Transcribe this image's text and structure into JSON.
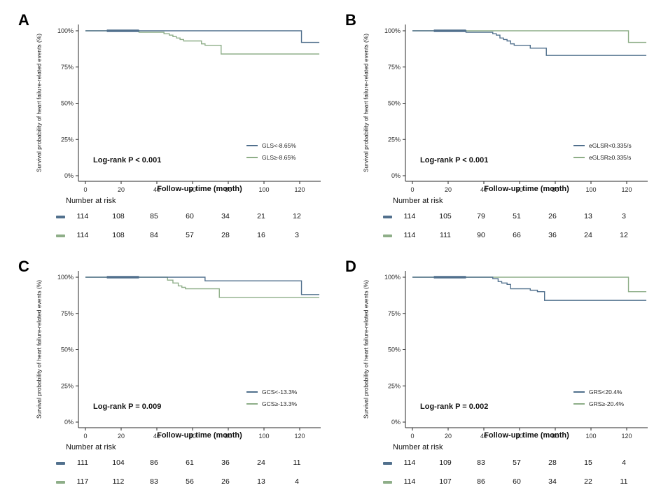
{
  "figure": {
    "y_axis_label": "Survival probability of heart failure-related events (%)",
    "x_axis_label": "Follow-up time (month)",
    "risk_table_label": "Number at risk"
  },
  "colors": {
    "group_low": "#51708d",
    "group_high": "#8eae88",
    "axis": "#2a2a2a",
    "text": "#111111"
  },
  "chart_data": [
    {
      "type": "line",
      "panel": "A",
      "log_rank": "Log-rank P < 0.001",
      "xlabel": "Follow-up time (month)",
      "ylabel": "Survival probability of heart failure-related events (%)",
      "xlim": [
        0,
        131
      ],
      "ylim": [
        0,
        100
      ],
      "x_ticks": [
        0,
        20,
        40,
        60,
        80,
        100,
        120
      ],
      "y_ticks": [
        100,
        75,
        50,
        25,
        0
      ],
      "y_tick_labels": [
        "100%",
        "75%",
        "50%",
        "25%",
        "0%"
      ],
      "grid": false,
      "legend_position": "lower right",
      "censor_band": [
        12,
        30
      ],
      "series": [
        {
          "name": "GLS<-8.65%",
          "color": "#51708d",
          "steps": [
            [
              0,
              100
            ],
            [
              121,
              92
            ]
          ],
          "at_risk": [
            114,
            108,
            85,
            60,
            34,
            21,
            12
          ]
        },
        {
          "name": "GLS≥-8.65%",
          "color": "#8eae88",
          "steps": [
            [
              0,
              100
            ],
            [
              30,
              99
            ],
            [
              44,
              98
            ],
            [
              47,
              97
            ],
            [
              49,
              96
            ],
            [
              51,
              95
            ],
            [
              53,
              94
            ],
            [
              55,
              93
            ],
            [
              65,
              91
            ],
            [
              67,
              90
            ],
            [
              76,
              84
            ]
          ],
          "at_risk": [
            114,
            108,
            84,
            57,
            28,
            16,
            3
          ]
        }
      ]
    },
    {
      "type": "line",
      "panel": "B",
      "log_rank": "Log-rank P < 0.001",
      "xlabel": "Follow-up time (month)",
      "ylabel": "Survival probability of heart failure-related events (%)",
      "xlim": [
        0,
        131
      ],
      "ylim": [
        0,
        100
      ],
      "x_ticks": [
        0,
        20,
        40,
        60,
        80,
        100,
        120
      ],
      "y_ticks": [
        100,
        75,
        50,
        25,
        0
      ],
      "y_tick_labels": [
        "100%",
        "75%",
        "50%",
        "25%",
        "0%"
      ],
      "grid": false,
      "legend_position": "lower right",
      "censor_band": [
        12,
        30
      ],
      "series": [
        {
          "name": "eGLSR<0.335/s",
          "color": "#51708d",
          "steps": [
            [
              0,
              100
            ],
            [
              30,
              99
            ],
            [
              45,
              98
            ],
            [
              47,
              97
            ],
            [
              49,
              95
            ],
            [
              51,
              94
            ],
            [
              53,
              93
            ],
            [
              55,
              91
            ],
            [
              57,
              90
            ],
            [
              66,
              88
            ],
            [
              75,
              83
            ]
          ],
          "at_risk": [
            114,
            105,
            79,
            51,
            26,
            13,
            3
          ]
        },
        {
          "name": "eGLSR≥0.335/s",
          "color": "#8eae88",
          "steps": [
            [
              0,
              100
            ],
            [
              121,
              92
            ]
          ],
          "at_risk": [
            114,
            111,
            90,
            66,
            36,
            24,
            12
          ]
        }
      ]
    },
    {
      "type": "line",
      "panel": "C",
      "log_rank": "Log-rank P = 0.009",
      "xlabel": "Follow-up time (month)",
      "ylabel": "Survival probability of heart failure-related events (%)",
      "xlim": [
        0,
        131
      ],
      "ylim": [
        0,
        100
      ],
      "x_ticks": [
        0,
        20,
        40,
        60,
        80,
        100,
        120
      ],
      "y_ticks": [
        100,
        75,
        50,
        25,
        0
      ],
      "y_tick_labels": [
        "100%",
        "75%",
        "50%",
        "25%",
        "0%"
      ],
      "grid": false,
      "legend_position": "lower right",
      "censor_band": [
        12,
        30
      ],
      "series": [
        {
          "name": "GCS<-13.3%",
          "color": "#51708d",
          "steps": [
            [
              0,
              100
            ],
            [
              67,
              97.5
            ],
            [
              121,
              88
            ]
          ],
          "at_risk": [
            111,
            104,
            86,
            61,
            36,
            24,
            11
          ]
        },
        {
          "name": "GCS≥-13.3%",
          "color": "#8eae88",
          "steps": [
            [
              0,
              100
            ],
            [
              46,
              98
            ],
            [
              49,
              96
            ],
            [
              52,
              94
            ],
            [
              54,
              93
            ],
            [
              56,
              92
            ],
            [
              75,
              86
            ]
          ],
          "at_risk": [
            117,
            112,
            83,
            56,
            26,
            13,
            4
          ]
        }
      ]
    },
    {
      "type": "line",
      "panel": "D",
      "log_rank": "Log-rank P = 0.002",
      "xlabel": "Follow-up time (month)",
      "ylabel": "Survival probability of heart failure-related events (%)",
      "xlim": [
        0,
        131
      ],
      "ylim": [
        0,
        100
      ],
      "x_ticks": [
        0,
        20,
        40,
        60,
        80,
        100,
        120
      ],
      "y_ticks": [
        100,
        75,
        50,
        25,
        0
      ],
      "y_tick_labels": [
        "100%",
        "75%",
        "50%",
        "25%",
        "0%"
      ],
      "grid": false,
      "legend_position": "lower right",
      "censor_band": [
        12,
        30
      ],
      "series": [
        {
          "name": "GRS<20.4%",
          "color": "#51708d",
          "steps": [
            [
              0,
              100
            ],
            [
              45,
              99
            ],
            [
              48,
              97
            ],
            [
              50,
              96
            ],
            [
              53,
              95
            ],
            [
              55,
              92
            ],
            [
              66,
              91
            ],
            [
              70,
              90
            ],
            [
              74,
              84
            ]
          ],
          "at_risk": [
            114,
            109,
            83,
            57,
            28,
            15,
            4
          ]
        },
        {
          "name": "GRS≥-20.4%",
          "color": "#8eae88",
          "steps": [
            [
              0,
              100
            ],
            [
              121,
              90
            ]
          ],
          "at_risk": [
            114,
            107,
            86,
            60,
            34,
            22,
            11
          ]
        }
      ]
    }
  ]
}
